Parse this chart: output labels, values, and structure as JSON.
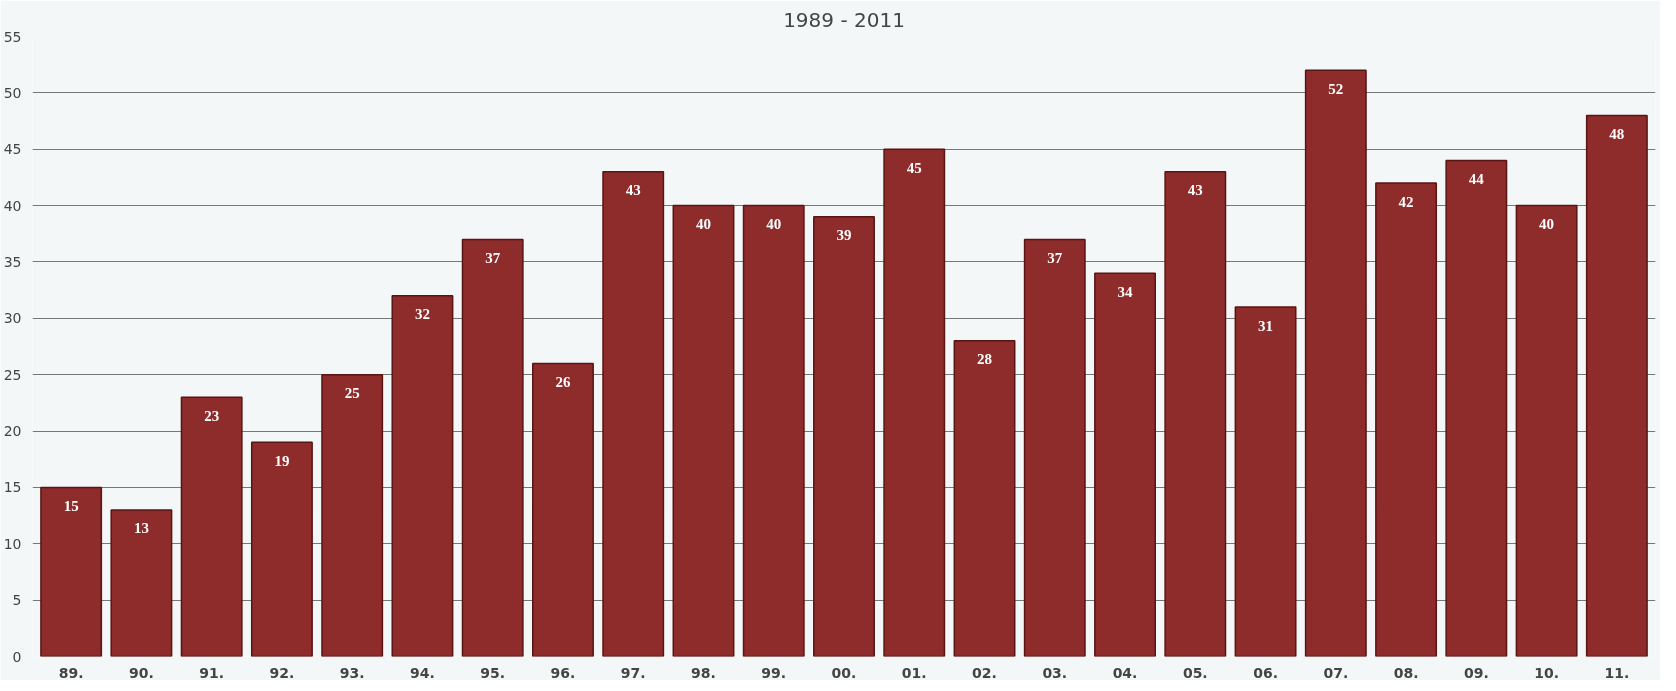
{
  "chart_data": {
    "type": "bar",
    "title": "1989 - 2011",
    "categories": [
      "89.",
      "90.",
      "91.",
      "92.",
      "93.",
      "94.",
      "95.",
      "96.",
      "97.",
      "98.",
      "99.",
      "00.",
      "01.",
      "02.",
      "03.",
      "04.",
      "05.",
      "06.",
      "07.",
      "08.",
      "09.",
      "10.",
      "11."
    ],
    "values": [
      15,
      13,
      23,
      19,
      25,
      32,
      37,
      26,
      43,
      40,
      40,
      39,
      45,
      28,
      37,
      34,
      43,
      31,
      52,
      42,
      44,
      40,
      48
    ],
    "color": "#8e2b2b",
    "ylim": [
      0,
      55
    ],
    "yticks": [
      0,
      5,
      10,
      15,
      20,
      25,
      30,
      35,
      40,
      45,
      50,
      55
    ],
    "grid": "y",
    "data_labels": true
  }
}
